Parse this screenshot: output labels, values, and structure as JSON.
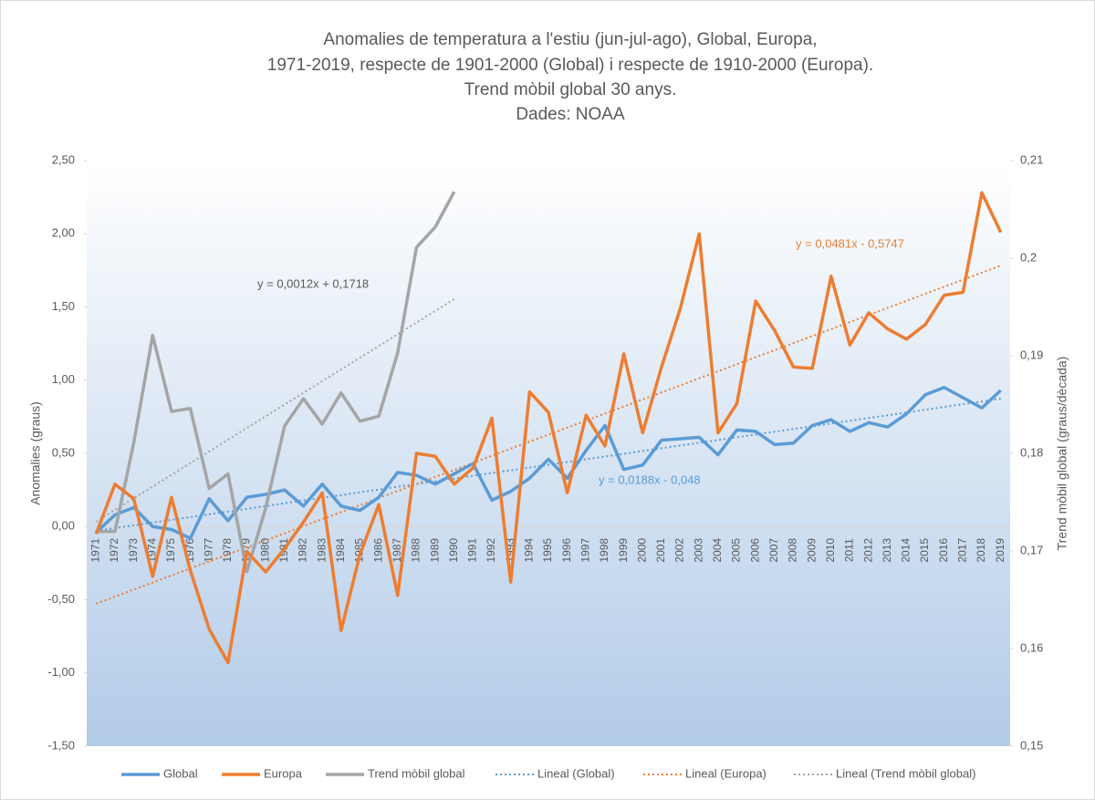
{
  "chart_data": {
    "type": "line",
    "title": [
      "Anomalies de temperatura a l'estiu (jun-jul-ago), Global, Europa,",
      "1971-2019, respecte de 1901-2000 (Global) i respecte de 1910-2000 (Europa).",
      "Trend mòbil global 30 anys.",
      "Dades: NOAA"
    ],
    "ylabel": "Anomalies (graus)",
    "y2label": "Trend mòbil global (graus/dècada)",
    "categories": [
      "1971",
      "1972",
      "1973",
      "1974",
      "1975",
      "1976",
      "1977",
      "1978",
      "1979",
      "1980",
      "1981",
      "1982",
      "1983",
      "1984",
      "1985",
      "1986",
      "1987",
      "1988",
      "1989",
      "1990",
      "1991",
      "1992",
      "1993",
      "1994",
      "1995",
      "1996",
      "1997",
      "1998",
      "1999",
      "2000",
      "2001",
      "2002",
      "2003",
      "2004",
      "2005",
      "2006",
      "2007",
      "2008",
      "2009",
      "2010",
      "2011",
      "2012",
      "2013",
      "2014",
      "2015",
      "2016",
      "2017",
      "2018",
      "2019"
    ],
    "ylim": [
      -1.5,
      2.5
    ],
    "yticks": [
      {
        "value": -1.5,
        "label": "-1,50"
      },
      {
        "value": -1,
        "label": "-1,00"
      },
      {
        "value": -0.5,
        "label": "-0,50"
      },
      {
        "value": 0,
        "label": "0,00"
      },
      {
        "value": 0.5,
        "label": "0,50"
      },
      {
        "value": 1,
        "label": "1,00"
      },
      {
        "value": 1.5,
        "label": "1,50"
      },
      {
        "value": 2,
        "label": "2,00"
      },
      {
        "value": 2.5,
        "label": "2,50"
      }
    ],
    "y2lim": [
      0.15,
      0.21
    ],
    "y2ticks": [
      {
        "value": 0.15,
        "label": "0,15"
      },
      {
        "value": 0.16,
        "label": "0,16"
      },
      {
        "value": 0.17,
        "label": "0,17"
      },
      {
        "value": 0.18,
        "label": "0,18"
      },
      {
        "value": 0.19,
        "label": "0,19"
      },
      {
        "value": 0.2,
        "label": "0,2"
      },
      {
        "value": 0.21,
        "label": "0,21"
      }
    ],
    "grid": false,
    "legend": "bottom",
    "series": [
      {
        "name": "Global",
        "color": "#5b9bd5",
        "dashed": false,
        "values": [
          -0.04,
          0.08,
          0.13,
          0.0,
          -0.02,
          -0.08,
          0.19,
          0.04,
          0.2,
          0.22,
          0.25,
          0.14,
          0.29,
          0.14,
          0.11,
          0.2,
          0.37,
          0.35,
          0.29,
          0.36,
          0.43,
          0.18,
          0.24,
          0.33,
          0.46,
          0.33,
          0.52,
          0.69,
          0.39,
          0.42,
          0.59,
          0.6,
          0.61,
          0.49,
          0.66,
          0.65,
          0.56,
          0.57,
          0.69,
          0.73,
          0.65,
          0.71,
          0.68,
          0.77,
          0.9,
          0.95,
          0.88,
          0.81,
          0.93
        ]
      },
      {
        "name": "Europa",
        "color": "#ed7d31",
        "dashed": false,
        "values": [
          -0.05,
          0.29,
          0.19,
          -0.34,
          0.2,
          -0.3,
          -0.7,
          -0.93,
          -0.17,
          -0.31,
          -0.15,
          0.03,
          0.23,
          -0.71,
          -0.19,
          0.15,
          -0.47,
          0.5,
          0.48,
          0.29,
          0.4,
          0.74,
          -0.38,
          0.92,
          0.78,
          0.23,
          0.76,
          0.55,
          1.18,
          0.64,
          1.09,
          1.49,
          2.0,
          0.64,
          0.84,
          1.54,
          1.34,
          1.09,
          1.08,
          1.71,
          1.24,
          1.46,
          1.35,
          1.28,
          1.38,
          1.58,
          1.6,
          2.28,
          2.01
        ]
      },
      {
        "name": "Trend mòbil global",
        "color": "#a5a5a5",
        "dashed": false,
        "axis": "y2",
        "values": [
          0.172,
          0.172,
          0.1811,
          0.1921,
          0.1843,
          0.1846,
          0.1764,
          0.1779,
          0.1679,
          0.1744,
          0.1828,
          0.1856,
          0.183,
          0.1862,
          0.1833,
          0.1838,
          0.1903,
          0.2011,
          0.2032,
          0.2068,
          null,
          null,
          null,
          null,
          null,
          null,
          null,
          null,
          null,
          null,
          null,
          null,
          null,
          null,
          null,
          null,
          null,
          null,
          null,
          null,
          null,
          null,
          null,
          null,
          null,
          null,
          null,
          null,
          null
        ]
      },
      {
        "name": "Lineal  (Global)",
        "color": "#5b9bd5",
        "dashed": true,
        "equation": "y = 0,0188x - 0,048",
        "values": [
          -0.029,
          -0.01,
          0.008,
          0.027,
          0.046,
          0.065,
          0.084,
          0.102,
          0.121,
          0.14,
          0.159,
          0.178,
          0.196,
          0.215,
          0.234,
          0.253,
          0.272,
          0.29,
          0.309,
          0.328,
          0.347,
          0.366,
          0.384,
          0.403,
          0.422,
          0.441,
          0.46,
          0.478,
          0.497,
          0.516,
          0.535,
          0.554,
          0.572,
          0.591,
          0.61,
          0.629,
          0.648,
          0.666,
          0.685,
          0.704,
          0.723,
          0.742,
          0.76,
          0.779,
          0.798,
          0.817,
          0.836,
          0.854,
          0.873
        ]
      },
      {
        "name": "Lineal  (Europa)",
        "color": "#ed7d31",
        "dashed": true,
        "equation": "y = 0,0481x - 0,5747",
        "values": [
          -0.527,
          -0.479,
          -0.43,
          -0.382,
          -0.334,
          -0.286,
          -0.238,
          -0.19,
          -0.142,
          -0.094,
          -0.046,
          0.003,
          0.051,
          0.099,
          0.147,
          0.195,
          0.243,
          0.291,
          0.339,
          0.387,
          0.435,
          0.484,
          0.532,
          0.58,
          0.628,
          0.676,
          0.724,
          0.772,
          0.82,
          0.868,
          0.916,
          0.964,
          1.013,
          1.061,
          1.109,
          1.157,
          1.205,
          1.253,
          1.301,
          1.349,
          1.397,
          1.445,
          1.494,
          1.542,
          1.59,
          1.638,
          1.686,
          1.734,
          1.782
        ]
      },
      {
        "name": "Lineal  (Trend mòbil global)",
        "color": "#a5a5a5",
        "dashed": true,
        "axis": "y2",
        "equation": "y = 0,0012x + 0,1718",
        "values": [
          0.173,
          0.1742,
          0.1754,
          0.1766,
          0.1778,
          0.179,
          0.1802,
          0.1814,
          0.1826,
          0.1838,
          0.185,
          0.1862,
          0.1874,
          0.1886,
          0.1898,
          0.191,
          0.1922,
          0.1934,
          0.1946,
          0.1958,
          null,
          null,
          null,
          null,
          null,
          null,
          null,
          null,
          null,
          null,
          null,
          null,
          null,
          null,
          null,
          null,
          null,
          null,
          null,
          null,
          null,
          null,
          null,
          null,
          null,
          null,
          null,
          null,
          null
        ]
      }
    ]
  }
}
